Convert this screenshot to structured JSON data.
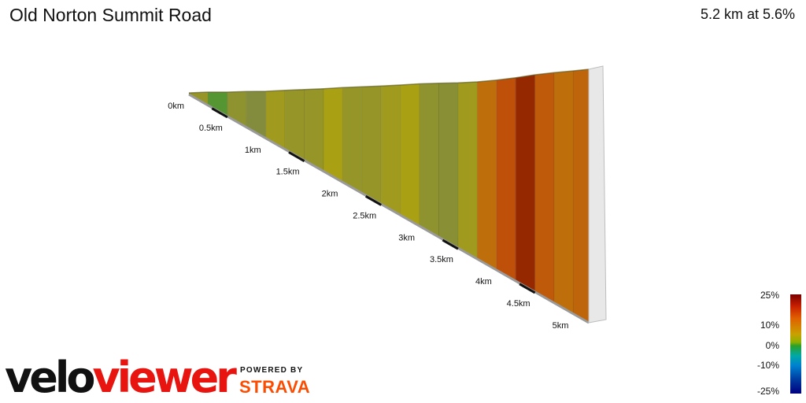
{
  "header": {
    "title": "Old Norton Summit Road",
    "summary": "5.2 km at 5.6%"
  },
  "chart_data": {
    "type": "area",
    "xlabel": "",
    "ylabel": "",
    "x_unit": "km",
    "xlim": [
      0,
      5.2
    ],
    "ticks": [
      "0km",
      "0.5km",
      "1km",
      "1.5km",
      "2km",
      "2.5km",
      "3km",
      "3.5km",
      "4km",
      "4.5km",
      "5km"
    ],
    "tick_values": [
      0,
      0.5,
      1,
      1.5,
      2,
      2.5,
      3,
      3.5,
      4,
      4.5,
      5
    ],
    "profile": {
      "distance_km": [
        0,
        0.25,
        0.5,
        0.75,
        1,
        1.25,
        1.5,
        1.75,
        2,
        2.25,
        2.5,
        2.75,
        3,
        3.25,
        3.5,
        3.75,
        4,
        4.25,
        4.5,
        4.75,
        5,
        5.2
      ],
      "gradient_pct": [
        1,
        4,
        0,
        3,
        1,
        5,
        4,
        4,
        6,
        4,
        4,
        5,
        6,
        3,
        2,
        5,
        9,
        12,
        15,
        11,
        9,
        10
      ]
    },
    "legend": {
      "labels": [
        "25%",
        "10%",
        "0%",
        "-10%",
        "-25%"
      ],
      "values": [
        25,
        10,
        0,
        -10,
        -25
      ]
    }
  },
  "branding": {
    "logo_part1": "velo",
    "logo_part2": "viewer",
    "powered_by": "POWERED BY",
    "strava": "STRAVA"
  },
  "colors": {
    "grade_neg": "#1a9a1a",
    "grade_low": "#8c8c38",
    "grade_mid": "#a4a014",
    "grade_high": "#bc5a0a",
    "grade_max": "#8c2a00"
  }
}
